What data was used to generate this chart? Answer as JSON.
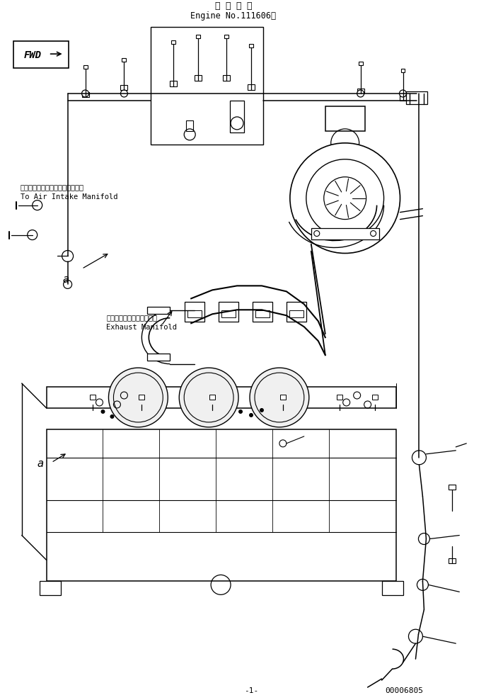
{
  "title_jp": "適 用 号 機",
  "title_en": "Engine No.111606～",
  "label_air_jp": "エアーインテークマニホールドへ",
  "label_air_en": "To Air Intake Manifold",
  "label_exhaust_jp": "エキゾーストマニホールド",
  "label_exhaust_en": "Exhaust Manifold",
  "label_a1": "a",
  "label_a2": "a",
  "doc_number": "00006805",
  "bg_color": "#ffffff",
  "line_color": "#000000"
}
